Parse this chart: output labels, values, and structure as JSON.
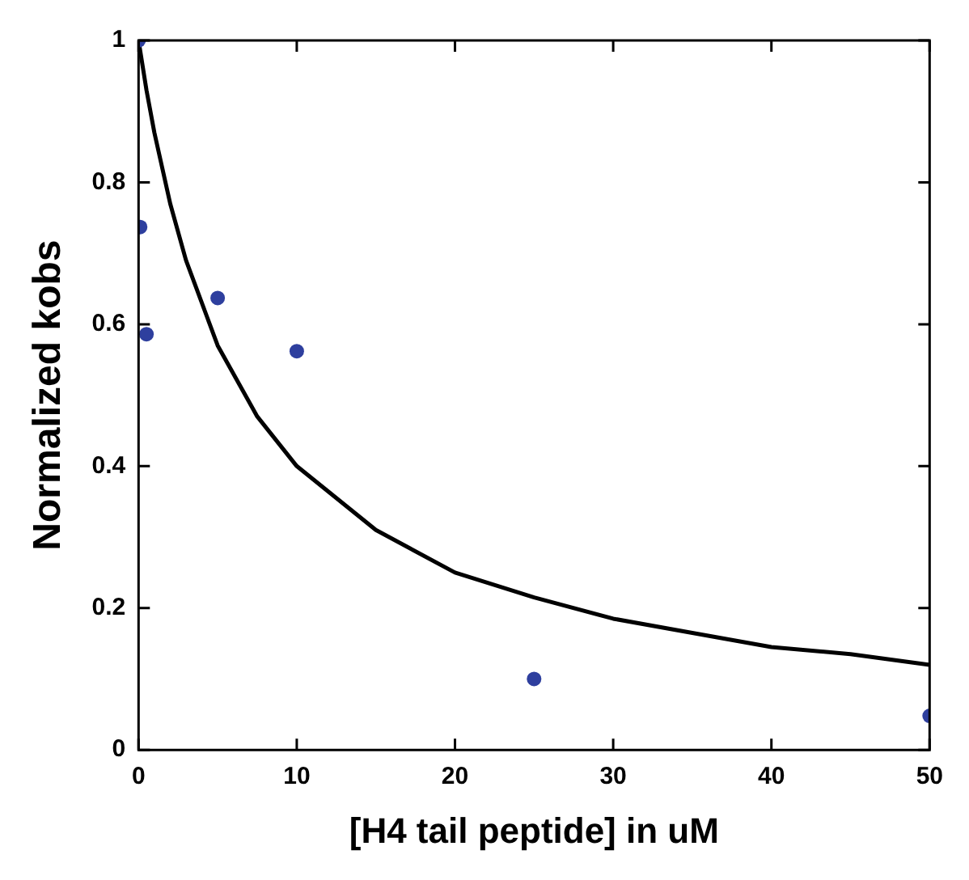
{
  "chart_data": {
    "type": "scatter",
    "xlabel": "[H4 tail peptide] in uM",
    "ylabel": "Normalized kobs",
    "xlim": [
      0,
      50
    ],
    "ylim": [
      0,
      1
    ],
    "xticks": [
      0,
      10,
      20,
      30,
      40,
      50
    ],
    "yticks": [
      0,
      0.2,
      0.4,
      0.6,
      0.8,
      1
    ],
    "grid": false,
    "legend": false,
    "series": [
      {
        "marker": "circle",
        "color": "#2e3f9e",
        "x": [
          0,
          0.1,
          0.5,
          5,
          10,
          25,
          50
        ],
        "values": [
          1,
          0.737,
          0.586,
          0.637,
          0.562,
          0.1,
          0.048
        ]
      },
      {
        "type": "line",
        "marker": "none",
        "line_style": "solid",
        "color": "#000000",
        "x": [
          0,
          0.5,
          1,
          2,
          3,
          5,
          7.5,
          10,
          15,
          20,
          25,
          30,
          35,
          40,
          45,
          50
        ],
        "values": [
          1,
          0.93,
          0.87,
          0.77,
          0.69,
          0.57,
          0.47,
          0.4,
          0.31,
          0.25,
          0.215,
          0.185,
          0.165,
          0.145,
          0.135,
          0.12
        ]
      }
    ]
  }
}
